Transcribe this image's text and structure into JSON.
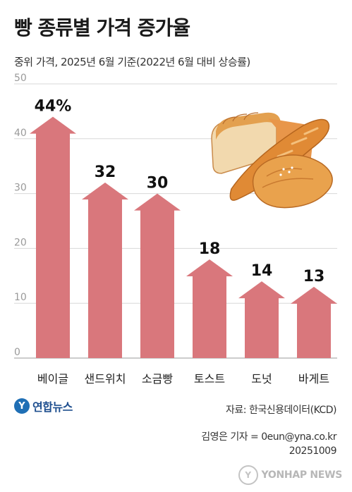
{
  "chart_data": {
    "type": "bar",
    "title": "빵 종류별 가격 증가율",
    "subtitle": "중위 가격, 2025년 6월 기준(2022년 6월 대비 상승률)",
    "categories": [
      "베이글",
      "샌드위치",
      "소금빵",
      "토스트",
      "도넛",
      "바게트"
    ],
    "values": [
      44,
      32,
      30,
      18,
      14,
      13
    ],
    "data_labels": [
      "44%",
      "32",
      "30",
      "18",
      "14",
      "13"
    ],
    "ylim": [
      0,
      50
    ],
    "yticks": [
      "0",
      "10",
      "20",
      "30",
      "40",
      "50"
    ],
    "grid": true,
    "bar_style": "arrow",
    "bar_color": "#d9777c"
  },
  "footer": {
    "logo_text": "연합뉴스",
    "source": "자료: 한국신용데이터(KCD)",
    "reporter": "김영은 기자 = 0eun@yna.co.kr",
    "date": "20251009",
    "watermark": "YONHAP NEWS"
  }
}
